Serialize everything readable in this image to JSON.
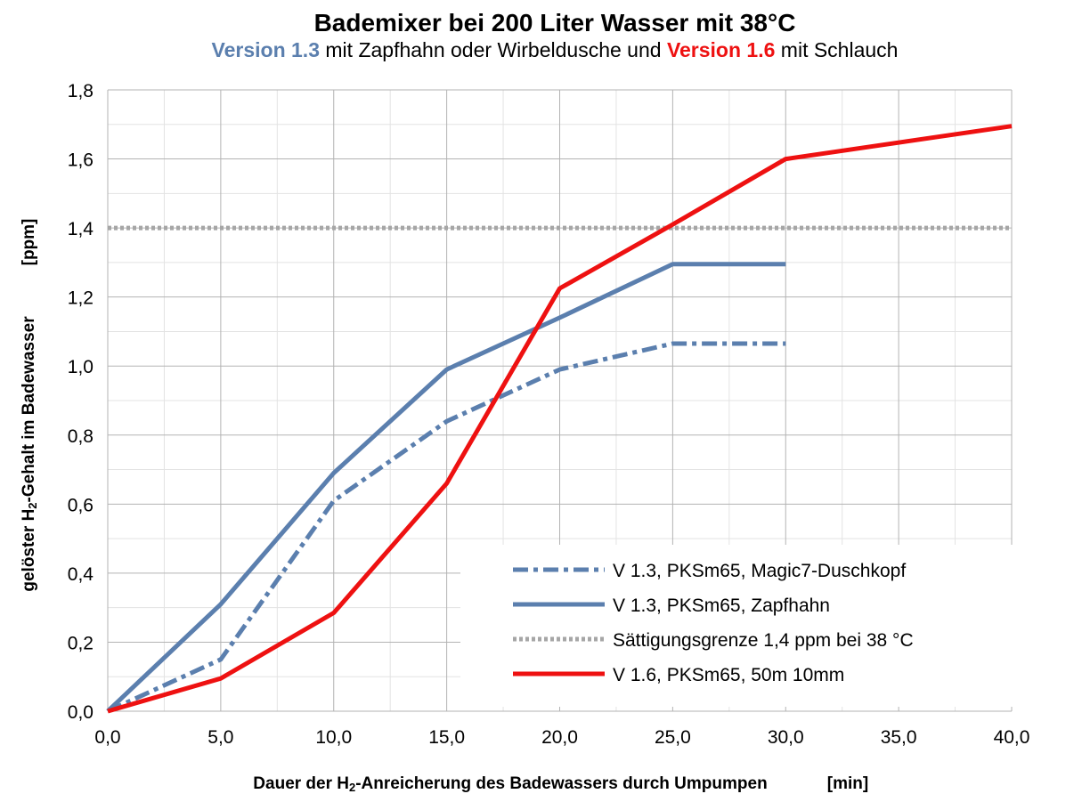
{
  "chart_data": {
    "type": "line",
    "title": "Bademixer bei 200 Liter Wasser mit 38°C",
    "subtitle": {
      "v13": "Version 1.3",
      "mid": " mit Zapfhahn oder Wirbeldusche und ",
      "v16": "Version 1.6",
      "end": " mit Schlauch"
    },
    "xlabel": {
      "pre": "Dauer der H",
      "sub": "2",
      "post": "-Anreicherung des Badewassers durch Umpumpen",
      "unit": "[min]"
    },
    "ylabel": {
      "pre": "gelöster H",
      "sub": "2",
      "post": "-Gehalt im Badewasser",
      "unit": "[ppm]"
    },
    "x_ticks": [
      "0,0",
      "5,0",
      "10,0",
      "15,0",
      "20,0",
      "25,0",
      "30,0",
      "35,0",
      "40,0"
    ],
    "y_ticks": [
      "0,0",
      "0,2",
      "0,4",
      "0,6",
      "0,8",
      "1,0",
      "1,2",
      "1,4",
      "1,6",
      "1,8"
    ],
    "xlim": [
      0,
      40
    ],
    "ylim": [
      0,
      1.8
    ],
    "grid": true,
    "legend_position": "bottom-right",
    "series": [
      {
        "name": "V 1.3, PKSm65, Magic7-Duschkopf",
        "color": "#5b7fae",
        "style": "dashdot",
        "x": [
          0,
          5,
          10,
          15,
          20,
          25,
          30
        ],
        "y": [
          0.0,
          0.15,
          0.61,
          0.84,
          0.99,
          1.065,
          1.065
        ]
      },
      {
        "name": "V 1.3, PKSm65, Zapfhahn",
        "color": "#5b7fae",
        "style": "solid",
        "x": [
          0,
          5,
          10,
          15,
          20,
          25,
          30
        ],
        "y": [
          0.0,
          0.31,
          0.69,
          0.99,
          1.14,
          1.295,
          1.295
        ]
      },
      {
        "name": "Sättigungsgrenze 1,4 ppm bei 38 °C",
        "color": "#a6a6a6",
        "style": "dotted",
        "x": [
          0,
          40
        ],
        "y": [
          1.4,
          1.4
        ]
      },
      {
        "name": "V 1.6, PKSm65, 50m 10mm",
        "color": "#ee1111",
        "style": "solid",
        "x": [
          0,
          5,
          10,
          15,
          20,
          25,
          30,
          40
        ],
        "y": [
          0.0,
          0.095,
          0.285,
          0.66,
          1.225,
          1.41,
          1.6,
          1.695
        ]
      }
    ]
  }
}
